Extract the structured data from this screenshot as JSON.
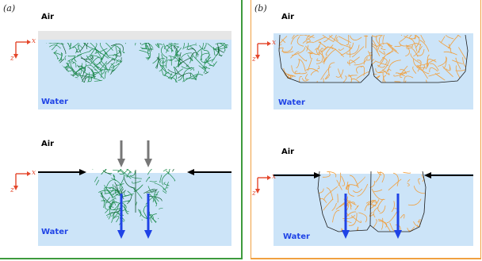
{
  "panels": [
    {
      "id": "a",
      "label": "(a)",
      "fiber_color": "#1a8a4a",
      "scenes": [
        {
          "air_label": "Air",
          "water_label": "Water",
          "axes": {
            "x": "x",
            "z": "z"
          }
        },
        {
          "air_label": "Air",
          "water_label": "Water",
          "axes": {
            "x": "x",
            "z": "z"
          }
        }
      ]
    },
    {
      "id": "b",
      "label": "(b)",
      "fiber_color": "#f0a040",
      "scenes": [
        {
          "air_label": "Air",
          "water_label": "Water",
          "axes": {
            "x": "x",
            "z": "z"
          }
        },
        {
          "air_label": "Air",
          "water_label": "Water",
          "axes": {
            "x": "x",
            "z": "z"
          }
        }
      ]
    }
  ],
  "colors": {
    "water": "#cce4f8",
    "air_band": "#e6e6e6",
    "axis": "#e4472b",
    "force_arrow": "#000000",
    "gravity_arrow": "#777777",
    "sink_arrow": "#1f43e6",
    "border_a": "#3d9a3d",
    "border_b": "#f0a040"
  }
}
